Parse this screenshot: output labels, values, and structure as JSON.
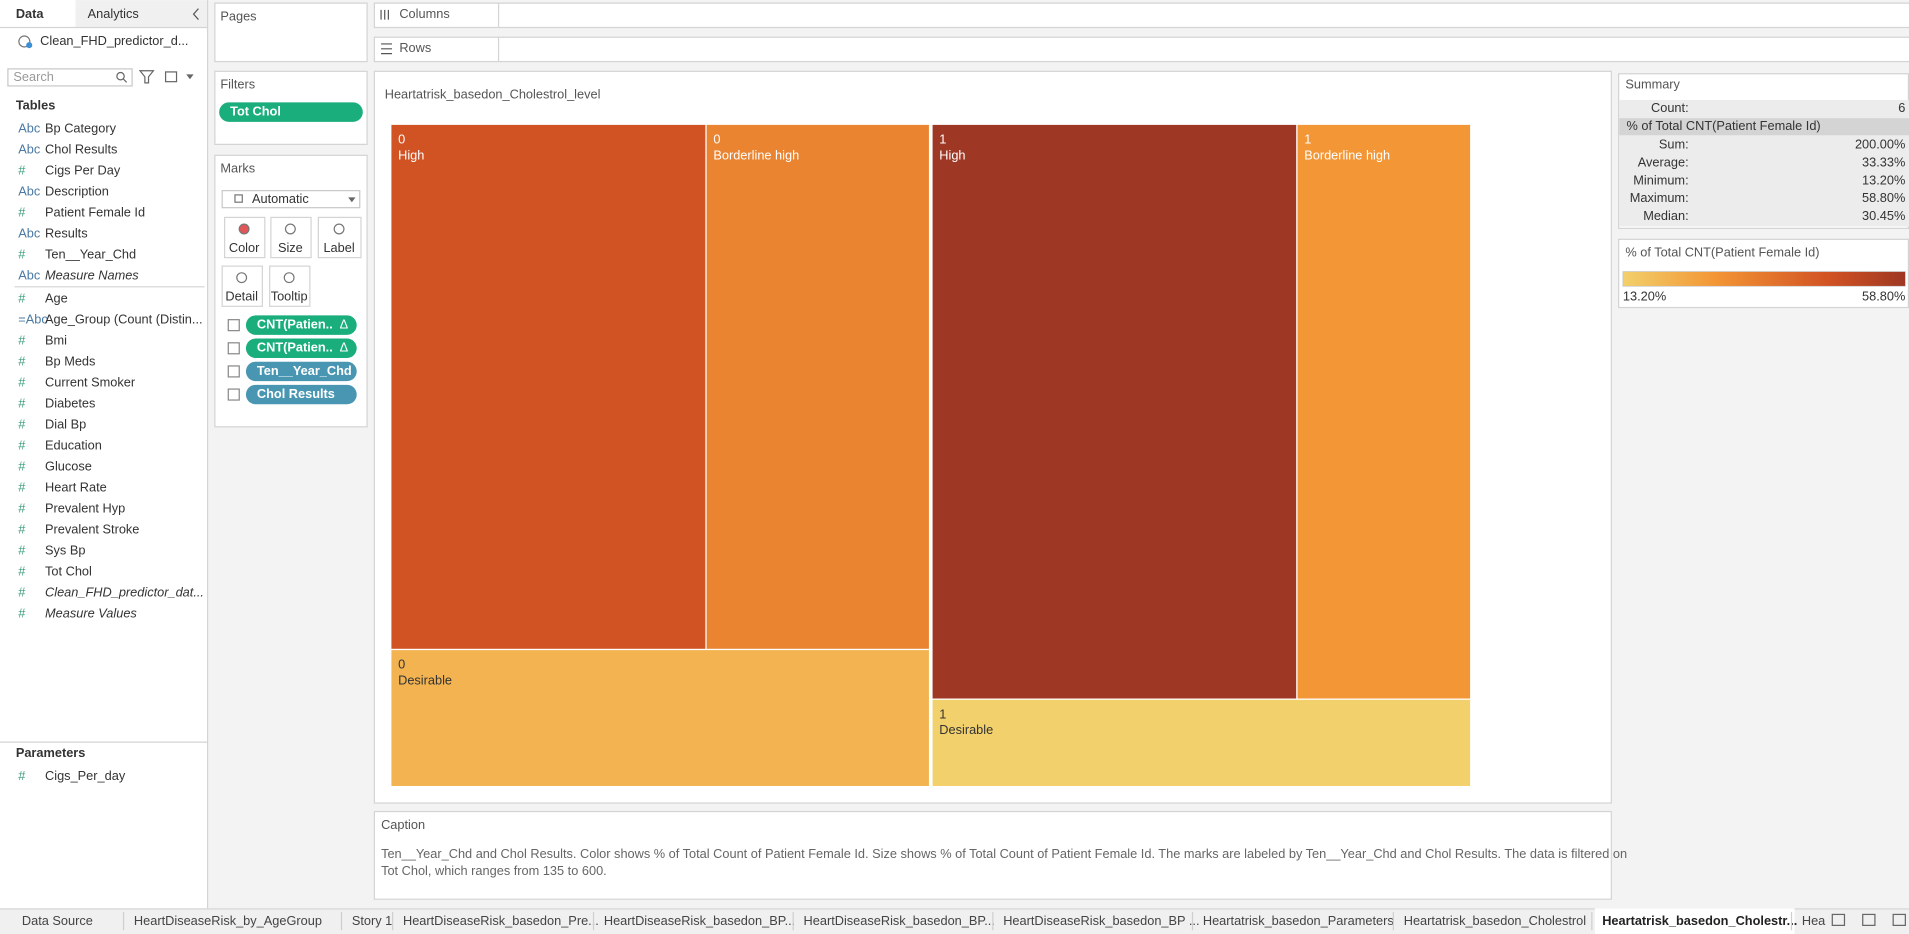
{
  "sidebar": {
    "tabs": [
      "Data",
      "Analytics"
    ],
    "datasource": "Clean_FHD_predictor_d...",
    "search": "Search",
    "tables_heading": "Tables",
    "fields": [
      {
        "type": "Abc",
        "name": "Bp Category"
      },
      {
        "type": "Abc",
        "name": "Chol Results"
      },
      {
        "type": "#",
        "name": "Cigs Per Day"
      },
      {
        "type": "Abc",
        "name": "Description"
      },
      {
        "type": "#",
        "name": "Patient Female Id"
      },
      {
        "type": "Abc",
        "name": "Results"
      },
      {
        "type": "#",
        "name": "Ten__Year_Chd"
      },
      {
        "type": "Abc",
        "name": "Measure Names",
        "italic": true
      },
      {
        "type": "#",
        "name": "Age"
      },
      {
        "type": "=Abc",
        "name": "Age_Group (Count (Distin..."
      },
      {
        "type": "#",
        "name": "Bmi"
      },
      {
        "type": "#",
        "name": "Bp Meds"
      },
      {
        "type": "#",
        "name": "Current Smoker"
      },
      {
        "type": "#",
        "name": "Diabetes"
      },
      {
        "type": "#",
        "name": "Dial Bp"
      },
      {
        "type": "#",
        "name": "Education"
      },
      {
        "type": "#",
        "name": "Glucose"
      },
      {
        "type": "#",
        "name": "Heart Rate"
      },
      {
        "type": "#",
        "name": "Prevalent Hyp"
      },
      {
        "type": "#",
        "name": "Prevalent Stroke"
      },
      {
        "type": "#",
        "name": "Sys Bp"
      },
      {
        "type": "#",
        "name": "Tot Chol"
      },
      {
        "type": "#",
        "name": "Clean_FHD_predictor_dat...",
        "italic": true
      },
      {
        "type": "#",
        "name": "Measure Values",
        "italic": true
      }
    ],
    "parameters_heading": "Parameters",
    "parameters": [
      {
        "type": "#",
        "name": "Cigs_Per_day"
      }
    ]
  },
  "shelves": {
    "pages": "Pages",
    "filters": "Filters",
    "filter_pills": [
      "Tot Chol"
    ],
    "marks": "Marks",
    "mark_type": "Automatic",
    "mark_buttons": [
      "Color",
      "Size",
      "Label",
      "Detail",
      "Tooltip"
    ],
    "mark_pills": [
      {
        "text": "CNT(Patien..",
        "suffix": "Δ",
        "color": "#1aae7c"
      },
      {
        "text": "CNT(Patien..",
        "suffix": "Δ",
        "color": "#1aae7c"
      },
      {
        "text": "Ten__Year_Chd",
        "color": "#4996b2"
      },
      {
        "text": "Chol Results",
        "color": "#4996b2"
      }
    ],
    "columns": "Columns",
    "rows": "Rows"
  },
  "chart_data": {
    "type": "treemap",
    "title": "Heartatrisk_basedon_Cholestrol_level",
    "groups": [
      {
        "name": "0",
        "items": [
          {
            "label": "High",
            "value": 46.4
          },
          {
            "label": "Borderline high",
            "value": 32.9
          },
          {
            "label": "Desirable",
            "value": 20.7
          }
        ]
      },
      {
        "name": "1",
        "items": [
          {
            "label": "High",
            "value": 58.8
          },
          {
            "label": "Borderline high",
            "value": 28.0
          },
          {
            "label": "Desirable",
            "value": 13.2
          }
        ]
      }
    ],
    "color_legend": {
      "title": "% of Total CNT(Patient Female Id)",
      "min": {
        "value": 13.2,
        "label": "13.20%"
      },
      "max": {
        "value": 58.8,
        "label": "58.80%"
      },
      "stops": [
        {
          "offset": 0,
          "color": "#f2d06b"
        },
        {
          "offset": 0.33,
          "color": "#f39535"
        },
        {
          "offset": 0.73,
          "color": "#d15223"
        },
        {
          "offset": 1,
          "color": "#9e3723"
        }
      ]
    }
  },
  "summary": {
    "title": "Summary",
    "count_label": "Count:",
    "count": "6",
    "measure": "% of Total CNT(Patient Female Id)",
    "rows": [
      {
        "label": "Sum:",
        "value": "200.00%"
      },
      {
        "label": "Average:",
        "value": "33.33%"
      },
      {
        "label": "Minimum:",
        "value": "13.20%"
      },
      {
        "label": "Maximum:",
        "value": "58.80%"
      },
      {
        "label": "Median:",
        "value": "30.45%"
      }
    ]
  },
  "caption": {
    "heading": "Caption",
    "lines": [
      "Ten__Year_Chd and Chol Results.  Color shows % of Total Count of Patient Female Id.  Size shows % of Total Count of Patient Female Id.  The marks are labeled by Ten__Year_Chd and Chol Results. The data is filtered on",
      "Tot Chol, which ranges from 135 to 600."
    ]
  },
  "sheet_tabs": [
    "Data Source",
    "HeartDiseaseRisk_by_AgeGroup",
    "Story 1",
    "HeartDiseaseRisk_basedon_Pre...",
    "HeartDiseaseRisk_basedon_BP...",
    "HeartDiseaseRisk_basedon_BP...",
    "HeartDiseaseRisk_basedon_BP ...",
    "Heartatrisk_basedon_Parameters",
    "Heartatrisk_basedon_Cholestrol",
    "Heartatrisk_basedon_Cholestr...",
    "Hea"
  ]
}
